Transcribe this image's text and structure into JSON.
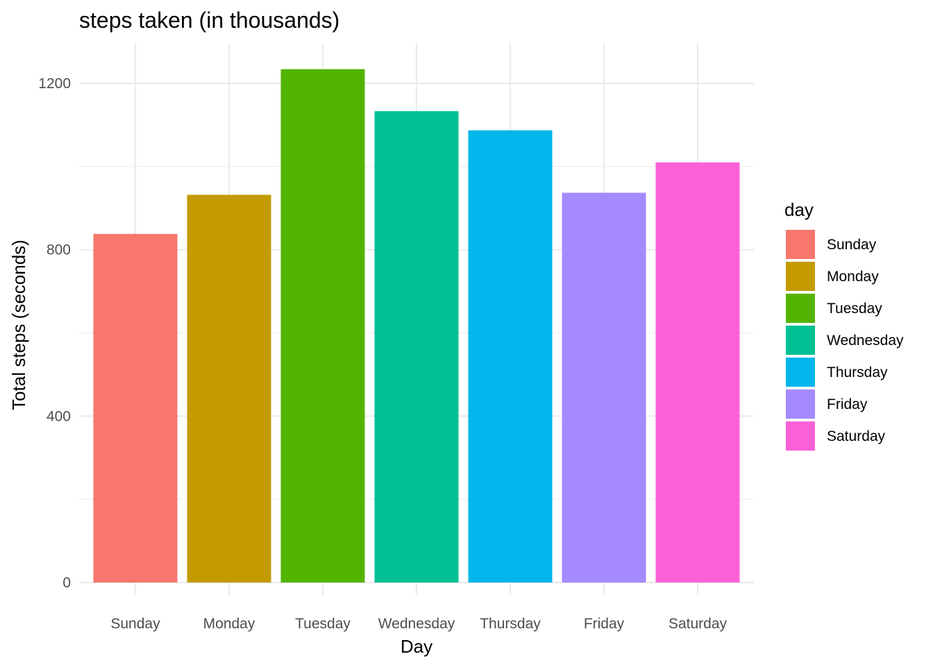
{
  "chart_data": {
    "type": "bar",
    "title": "steps taken (in thousands)",
    "xlabel": "Day",
    "ylabel": "Total steps (seconds)",
    "categories": [
      "Sunday",
      "Monday",
      "Tuesday",
      "Wednesday",
      "Thursday",
      "Friday",
      "Saturday"
    ],
    "values": [
      838,
      932,
      1234,
      1133,
      1087,
      937,
      1010
    ],
    "colors": [
      "#F8766D",
      "#C49A00",
      "#53B400",
      "#00C094",
      "#00B6EB",
      "#A58AFF",
      "#FB61D7"
    ],
    "ylim": [
      0,
      1300
    ],
    "yticks": [
      0,
      400,
      800,
      1200
    ],
    "grid": true,
    "legend": {
      "title": "day",
      "placement": "right",
      "entries": [
        "Sunday",
        "Monday",
        "Tuesday",
        "Wednesday",
        "Thursday",
        "Friday",
        "Saturday"
      ]
    }
  }
}
